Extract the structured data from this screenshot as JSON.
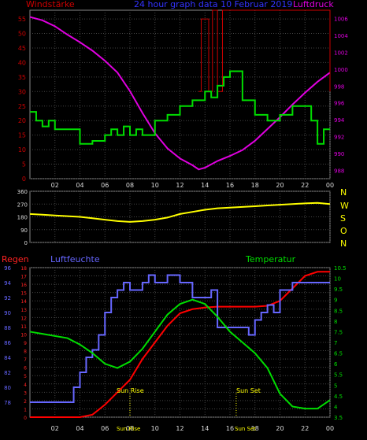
{
  "title": "24 hour graph data  10 Februar 2019",
  "labels": {
    "windstaerke": "Windstärke",
    "luftdruck": "Luftdruck",
    "regen": "Regen",
    "luftfeuchte": "Luftfeuchte",
    "temperatur": "Temperatur",
    "sunrise": "Sun Rise",
    "sunset": "Sun Set",
    "sunrise_time": "Sun Rise",
    "sunset_time": "Sun Set",
    "dir_letters": [
      "N",
      "W",
      "S",
      "O",
      "N"
    ]
  },
  "colors": {
    "wind_gust": "#cc0000",
    "wind_avg": "#00dd00",
    "pressure": "#e000e0",
    "direction": "#ffff00",
    "rain": "#ff0000",
    "humidity": "#6666ff",
    "temperature": "#00dd00",
    "grid": "#444444",
    "axis": "#aaaaaa"
  },
  "x_ticks": [
    "02",
    "04",
    "06",
    "08",
    "10",
    "12",
    "14",
    "16",
    "18",
    "20",
    "22",
    "00"
  ],
  "chart_data": [
    {
      "type": "line",
      "title": "24 hour graph data  10 Februar 2019",
      "xlabel": "",
      "ylabel_left": "Windstärke",
      "ylabel_right": "Luftdruck",
      "x_range": [
        0,
        24
      ],
      "ylim_left": [
        0,
        58
      ],
      "ylim_right": [
        987,
        1007
      ],
      "left_ticks": [
        0,
        5,
        10,
        15,
        20,
        25,
        30,
        35,
        40,
        45,
        50,
        55
      ],
      "right_ticks": [
        988,
        990,
        992,
        994,
        996,
        998,
        1000,
        1002,
        1004,
        1006
      ],
      "series": [
        {
          "name": "Luftdruck",
          "axis": "right",
          "x": [
            0,
            1,
            2,
            3,
            4,
            5,
            6,
            7,
            8,
            9,
            10,
            11,
            12,
            13,
            13.5,
            14,
            15,
            16,
            17,
            18,
            19,
            20,
            21,
            22,
            23,
            24
          ],
          "values": [
            1006.2,
            1005.8,
            1005.1,
            1004.1,
            1003.2,
            1002.2,
            1001,
            999.6,
            997.4,
            994.8,
            992.4,
            990.6,
            989.4,
            988.6,
            988.1,
            988.3,
            989.1,
            989.7,
            990.4,
            991.5,
            992.9,
            994.3,
            995.8,
            997.2,
            998.5,
            999.6
          ]
        },
        {
          "name": "Böen",
          "axis": "left",
          "step": true,
          "x": [
            13.5,
            13.7,
            14,
            14.3,
            14.6,
            15,
            15.4,
            24
          ],
          "values": [
            30,
            55,
            55,
            30,
            58,
            30,
            58,
            30
          ]
        },
        {
          "name": "Wind",
          "axis": "left",
          "step": true,
          "x": [
            0,
            0.5,
            1,
            1.5,
            2,
            2.5,
            3,
            4,
            5,
            6,
            6.5,
            7,
            7.5,
            8,
            8.5,
            9,
            10,
            11,
            12,
            12.5,
            13,
            13.5,
            14,
            14.5,
            15,
            15.5,
            16,
            17,
            18,
            19,
            20,
            21,
            22,
            22.5,
            23,
            23.5,
            24
          ],
          "values": [
            23,
            20,
            18,
            20,
            17,
            17,
            17,
            12,
            13,
            15,
            17,
            15,
            18,
            15,
            17,
            15,
            20,
            22,
            25,
            25,
            27,
            27,
            30,
            28,
            32,
            35,
            37,
            27,
            22,
            20,
            22,
            25,
            25,
            20,
            12,
            17,
            17
          ]
        }
      ]
    },
    {
      "type": "line",
      "title": "",
      "ylabel_right": "N W S O N",
      "x_range": [
        0,
        24
      ],
      "ylim": [
        0,
        360
      ],
      "y_ticks": [
        0,
        90,
        180,
        270,
        360
      ],
      "series": [
        {
          "name": "Windrichtung",
          "x": [
            0,
            1,
            2,
            3,
            4,
            5,
            6,
            7,
            8,
            9,
            10,
            11,
            12,
            13,
            14,
            15,
            16,
            17,
            18,
            19,
            20,
            21,
            22,
            23,
            24
          ],
          "values": [
            200,
            195,
            190,
            185,
            180,
            170,
            160,
            150,
            145,
            150,
            160,
            175,
            200,
            215,
            230,
            240,
            245,
            250,
            255,
            260,
            265,
            270,
            275,
            278,
            270
          ]
        }
      ]
    },
    {
      "type": "line",
      "title": "",
      "ylabel_left": "Regen",
      "ylabel_left2": "Luftfeuchte",
      "ylabel_right": "Temperatur",
      "x_range": [
        0,
        24
      ],
      "ylim_rain": [
        0,
        18
      ],
      "ylim_humidity": [
        76,
        96
      ],
      "ylim_temperature": [
        3.5,
        10.5
      ],
      "rain_ticks": [
        0,
        1,
        2,
        3,
        4,
        5,
        6,
        7,
        8,
        9,
        10,
        11,
        12,
        13,
        14,
        15,
        16,
        17,
        18
      ],
      "humidity_ticks": [
        78,
        80,
        82,
        84,
        86,
        88,
        90,
        92,
        94,
        96
      ],
      "temperature_ticks": [
        3.5,
        4,
        4.5,
        5,
        5.5,
        6,
        6.5,
        7,
        7.5,
        8,
        8.5,
        9,
        9.5,
        10,
        10.5
      ],
      "sunrise_hour": 8,
      "sunset_hour": 16.5,
      "series": [
        {
          "name": "Regen",
          "axis": "rain",
          "x": [
            0,
            3,
            4,
            5,
            6,
            7,
            8,
            9,
            10,
            11,
            12,
            13,
            14,
            15,
            16,
            17,
            18,
            19,
            20,
            21,
            22,
            23,
            24
          ],
          "values": [
            0,
            0,
            0,
            0.3,
            1.5,
            3,
            4.5,
            7,
            9,
            11,
            12.5,
            13,
            13.2,
            13.3,
            13.3,
            13.3,
            13.3,
            13.4,
            14,
            15.5,
            17,
            17.5,
            17.5
          ]
        },
        {
          "name": "Luftfeuchte",
          "axis": "humidity",
          "step": true,
          "x": [
            0,
            1,
            2,
            3,
            3.5,
            4,
            4.5,
            5,
            5.5,
            6,
            6.5,
            7,
            7.5,
            8,
            8.5,
            9,
            9.5,
            10,
            11,
            12,
            13,
            14,
            14.5,
            15,
            16,
            17,
            17.5,
            18,
            18.5,
            19,
            19.5,
            20,
            21,
            22,
            24
          ],
          "values": [
            78,
            78,
            78,
            78,
            80,
            82,
            84,
            85,
            87,
            90,
            92,
            93,
            94,
            93,
            93,
            94,
            95,
            94,
            95,
            94,
            92,
            92,
            93,
            88,
            88,
            88,
            87,
            89,
            90,
            91,
            90,
            93,
            94,
            94,
            94
          ]
        },
        {
          "name": "Temperatur",
          "axis": "temperature",
          "x": [
            0,
            1,
            2,
            3,
            4,
            5,
            6,
            7,
            8,
            9,
            10,
            11,
            12,
            13,
            14,
            15,
            16,
            17,
            18,
            19,
            20,
            21,
            22,
            23,
            24
          ],
          "values": [
            7.5,
            7.4,
            7.3,
            7.2,
            6.9,
            6.5,
            6.0,
            5.8,
            6.1,
            6.7,
            7.5,
            8.3,
            8.8,
            9.0,
            8.8,
            8.2,
            7.5,
            7.0,
            6.5,
            5.8,
            4.6,
            4.0,
            3.9,
            3.9,
            4.3
          ]
        }
      ]
    }
  ]
}
